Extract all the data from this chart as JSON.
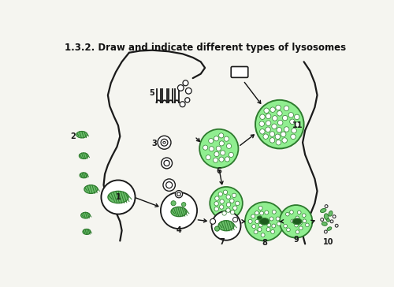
{
  "title": "1.3.2. Draw and indicate different types of lysosomes",
  "bg_color": "#f5f5f0",
  "green_fill": "#5cb85c",
  "green_light": "#90ee90",
  "green_mid": "#6abf6a",
  "green_dark": "#2d7a2d",
  "outline_color": "#1a1a1a",
  "arrow_color": "#111111"
}
